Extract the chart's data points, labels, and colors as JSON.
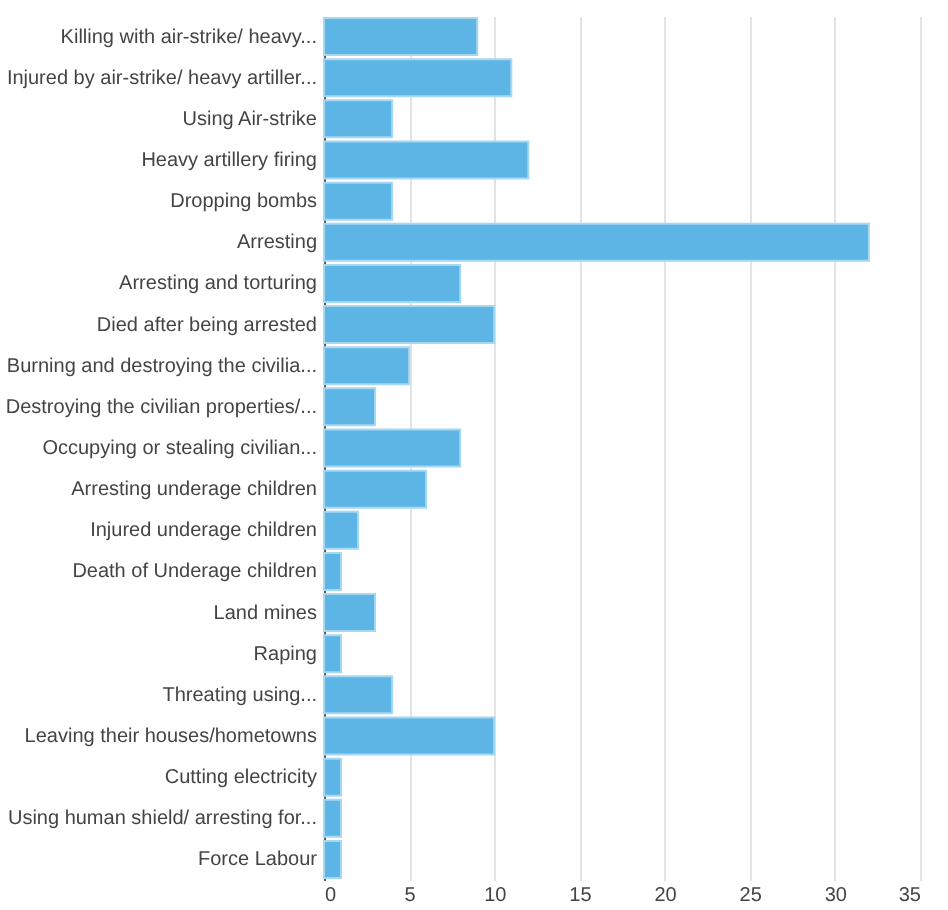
{
  "chart_data": {
    "type": "bar",
    "orientation": "horizontal",
    "categories": [
      "Killing with air-strike/ heavy...",
      "Injured by air-strike/ heavy artiller...",
      "Using Air-strike",
      "Heavy artillery firing",
      "Dropping bombs",
      "Arresting",
      "Arresting and torturing",
      "Died after being arrested",
      "Burning and destroying the civilia...",
      "Destroying the civilian properties/...",
      "Occupying or stealing civilian...",
      "Arresting underage children",
      "Injured underage children",
      "Death of Underage children",
      "Land mines",
      "Raping",
      "Threating using...",
      "Leaving their houses/hometowns",
      "Cutting electricity",
      "Using human shield/ arresting for...",
      "Force Labour"
    ],
    "values": [
      9,
      11,
      4,
      12,
      4,
      32,
      8,
      10,
      5,
      3,
      8,
      6,
      2,
      1,
      3,
      1,
      4,
      10,
      1,
      1,
      1
    ],
    "color": "#5db5e5",
    "xlim": [
      0,
      35
    ],
    "xticks": [
      0,
      5,
      10,
      15,
      20,
      25,
      30,
      35
    ],
    "grid": "x"
  }
}
